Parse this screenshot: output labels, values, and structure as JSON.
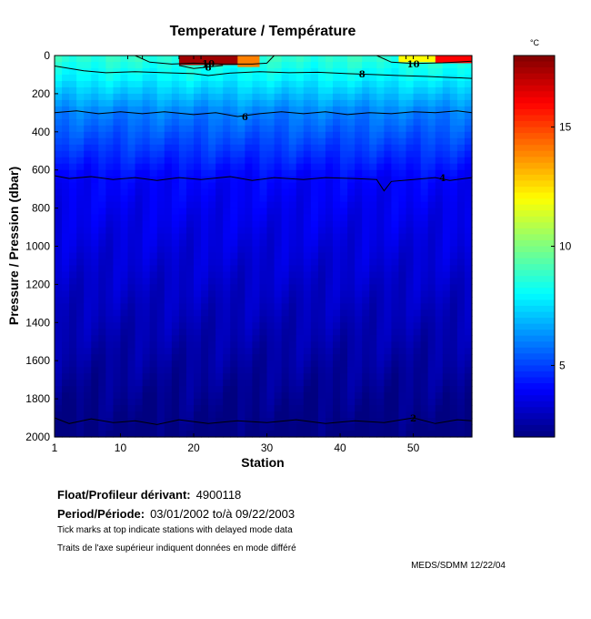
{
  "chart_data": {
    "type": "heatmap",
    "title": "Temperature / Température",
    "xlabel": "Station",
    "ylabel": "Pressure / Pression (dbar)",
    "xlim": [
      1,
      58
    ],
    "ylim": [
      0,
      2000
    ],
    "x_ticks": [
      1,
      10,
      20,
      30,
      40,
      50
    ],
    "y_ticks": [
      0,
      200,
      400,
      600,
      800,
      1000,
      1200,
      1400,
      1600,
      1800,
      2000
    ],
    "colorbar": {
      "unit": "°C",
      "range": [
        2,
        18
      ],
      "ticks": [
        5,
        10,
        15
      ],
      "colormap": "jet"
    },
    "contours": [
      {
        "level": 2,
        "label": "2",
        "label_station": 50,
        "points": [
          [
            1,
            1900
          ],
          [
            3,
            1930
          ],
          [
            6,
            1905
          ],
          [
            9,
            1925
          ],
          [
            12,
            1915
          ],
          [
            15,
            1935
          ],
          [
            18,
            1910
          ],
          [
            22,
            1930
          ],
          [
            26,
            1915
          ],
          [
            30,
            1925
          ],
          [
            34,
            1910
          ],
          [
            38,
            1930
          ],
          [
            42,
            1915
          ],
          [
            46,
            1925
          ],
          [
            50,
            1900
          ],
          [
            53,
            1930
          ],
          [
            56,
            1910
          ],
          [
            58,
            1915
          ]
        ]
      },
      {
        "level": 4,
        "label": "4",
        "label_station": 54,
        "points": [
          [
            1,
            630
          ],
          [
            3,
            645
          ],
          [
            6,
            635
          ],
          [
            9,
            650
          ],
          [
            12,
            640
          ],
          [
            15,
            655
          ],
          [
            18,
            640
          ],
          [
            21,
            650
          ],
          [
            25,
            635
          ],
          [
            28,
            655
          ],
          [
            31,
            640
          ],
          [
            35,
            650
          ],
          [
            38,
            640
          ],
          [
            42,
            645
          ],
          [
            45,
            650
          ],
          [
            46,
            710
          ],
          [
            47,
            660
          ],
          [
            50,
            650
          ],
          [
            53,
            640
          ],
          [
            55,
            655
          ],
          [
            58,
            640
          ]
        ]
      },
      {
        "level": 6,
        "label": "6",
        "label_station": 27,
        "points": [
          [
            1,
            300
          ],
          [
            4,
            290
          ],
          [
            7,
            305
          ],
          [
            10,
            295
          ],
          [
            13,
            305
          ],
          [
            16,
            295
          ],
          [
            20,
            310
          ],
          [
            23,
            300
          ],
          [
            26,
            320
          ],
          [
            29,
            305
          ],
          [
            32,
            295
          ],
          [
            35,
            305
          ],
          [
            38,
            295
          ],
          [
            41,
            310
          ],
          [
            44,
            300
          ],
          [
            47,
            305
          ],
          [
            50,
            295
          ],
          [
            53,
            300
          ],
          [
            56,
            290
          ],
          [
            58,
            300
          ]
        ]
      },
      {
        "level": 8,
        "label": "8",
        "label_station": 43,
        "points": [
          [
            1,
            55
          ],
          [
            5,
            80
          ],
          [
            8,
            90
          ],
          [
            12,
            85
          ],
          [
            16,
            90
          ],
          [
            20,
            95
          ],
          [
            22,
            105
          ],
          [
            25,
            92
          ],
          [
            29,
            85
          ],
          [
            33,
            90
          ],
          [
            37,
            88
          ],
          [
            41,
            95
          ],
          [
            45,
            100
          ],
          [
            48,
            105
          ],
          [
            52,
            110
          ],
          [
            55,
            115
          ],
          [
            58,
            120
          ]
        ]
      },
      {
        "level": 8,
        "label": "8",
        "label_station": 22,
        "points": [
          [
            18,
            52
          ],
          [
            20,
            68
          ],
          [
            22,
            60
          ],
          [
            24,
            52
          ]
        ]
      },
      {
        "level": 10,
        "label": "10",
        "label_station": 22,
        "points": [
          [
            12,
            0
          ],
          [
            14,
            35
          ],
          [
            17,
            45
          ],
          [
            20,
            40
          ],
          [
            24,
            45
          ],
          [
            28,
            45
          ],
          [
            30,
            40
          ],
          [
            31,
            0
          ]
        ]
      },
      {
        "level": 10,
        "label": "10",
        "label_station": 50,
        "points": [
          [
            45,
            0
          ],
          [
            47,
            35
          ],
          [
            50,
            42
          ],
          [
            54,
            38
          ],
          [
            58,
            30
          ]
        ]
      }
    ],
    "warm_patches": [
      {
        "station_start": 18,
        "station_end": 27,
        "pressure_end": 50,
        "temperature": 17.5
      },
      {
        "station_start": 26,
        "station_end": 29,
        "pressure_end": 60,
        "temperature": 14
      },
      {
        "station_start": 53,
        "station_end": 58,
        "pressure_end": 40,
        "temperature": 16
      },
      {
        "station_start": 48,
        "station_end": 53,
        "pressure_end": 35,
        "temperature": 12
      }
    ],
    "delayed_mode_tick_stations": [
      11,
      13,
      18,
      20,
      21,
      49,
      50,
      52
    ]
  },
  "info": {
    "float_label": "Float/Profileur dérivant:",
    "float_id": "4900118",
    "period_label": "Period/Période:",
    "period_value": "03/01/2002  to/à  09/22/2003",
    "note_en": "Tick marks at top indicate stations with delayed mode data",
    "note_fr": "Traits de l'axe supérieur indiquent données en mode différé",
    "credit": "MEDS/SDMM  12/22/04"
  }
}
